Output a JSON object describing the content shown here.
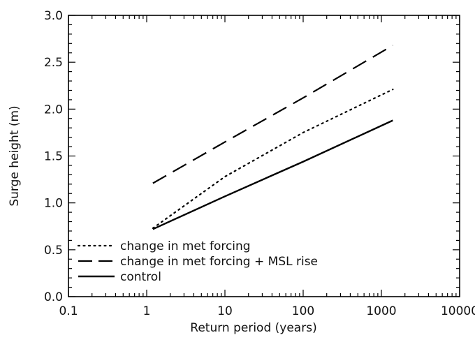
{
  "chart_data": {
    "type": "line",
    "xlabel": "Return period (years)",
    "ylabel": "Surge height (m)",
    "x_scale": "log",
    "xlim": [
      0.1,
      10000
    ],
    "ylim": [
      0.0,
      3.0
    ],
    "x_ticks": [
      "0.1",
      "1",
      "10",
      "100",
      "1000",
      "10000"
    ],
    "y_ticks": [
      "0.0",
      "0.5",
      "1.0",
      "1.5",
      "2.0",
      "2.5",
      "3.0"
    ],
    "legend_position": "bottom-left",
    "grid": false,
    "series": [
      {
        "name": "change in met forcing",
        "style": "dotted",
        "x": [
          1.2,
          10,
          100,
          1400
        ],
        "y": [
          0.73,
          1.28,
          1.75,
          2.21
        ]
      },
      {
        "name": "change in met forcing + MSL rise",
        "style": "dashed",
        "x": [
          1.2,
          10,
          100,
          1400
        ],
        "y": [
          1.21,
          1.65,
          2.12,
          2.68
        ]
      },
      {
        "name": "control",
        "style": "solid",
        "x": [
          1.2,
          10,
          100,
          1400
        ],
        "y": [
          0.72,
          1.07,
          1.44,
          1.88
        ]
      }
    ]
  }
}
